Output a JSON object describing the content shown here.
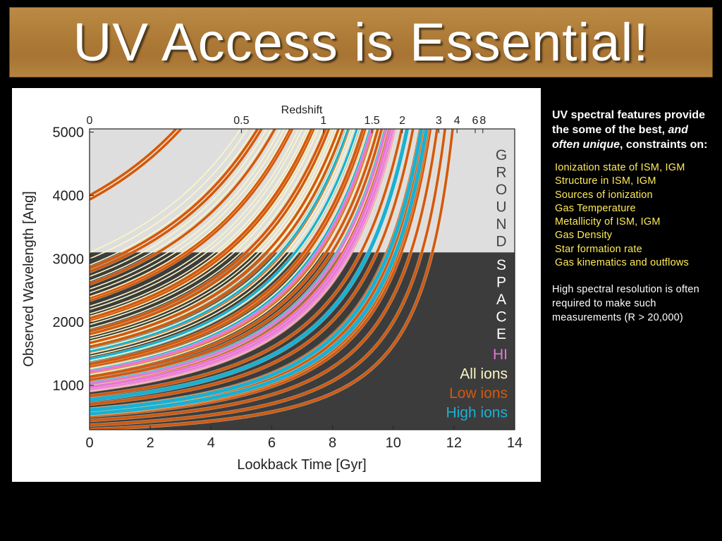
{
  "slide": {
    "title": "UV Access is Essential!",
    "intro": {
      "part1": "UV spectral features provide the some of the best, ",
      "emphasis": "and often unique",
      "part2": ", constraints on:"
    },
    "bullets": [
      "Ionization state of ISM, IGM",
      "Structure in ISM, IGM",
      "Sources of ionization",
      "Gas Temperature",
      "Metallicity of ISM, IGM",
      "Gas Density",
      "Star formation rate",
      "Gas kinematics and outflows"
    ],
    "note": "High spectral resolution is often required to make such measurements (R > 20,000)"
  },
  "colors": {
    "ground_band": "#dedede",
    "space_band": "#3c3c3c",
    "all_ions": "#fbf7c6",
    "low_ions": "#d2590e",
    "high_ions": "#18b1d3",
    "hi": "#e676d8"
  },
  "chart_data": {
    "type": "line",
    "title": "",
    "xlabel": "Lookback Time [Gyr]",
    "ylabel": "Observed Wavelength [Ang]",
    "top_axis_label": "Redshift",
    "xlim": [
      0,
      14
    ],
    "ylim": [
      300,
      5050
    ],
    "x_ticks": [
      0,
      2,
      4,
      6,
      8,
      10,
      12,
      14
    ],
    "y_ticks": [
      1000,
      2000,
      3000,
      4000,
      5000
    ],
    "redshift_ticks": [
      {
        "label": "0",
        "t": 0
      },
      {
        "label": "0.5",
        "t": 5.0
      },
      {
        "label": "1",
        "t": 7.7
      },
      {
        "label": "1.5",
        "t": 9.3
      },
      {
        "label": "2",
        "t": 10.3
      },
      {
        "label": "3",
        "t": 11.5
      },
      {
        "label": "4",
        "t": 12.1
      },
      {
        "label": "6",
        "t": 12.7
      },
      {
        "label": "8",
        "t": 12.95
      }
    ],
    "t_max": 13.7,
    "ground_space_boundary": 3100,
    "band_labels": {
      "ground": "GROUND",
      "space": "SPACE"
    },
    "legend": [
      {
        "name": "HI",
        "color": "#e676d8"
      },
      {
        "name": "All ions",
        "color": "#fbf7c6"
      },
      {
        "name": "Low ions",
        "color": "#d2590e"
      },
      {
        "name": "High ions",
        "color": "#18b1d3"
      }
    ],
    "series": [
      {
        "name": "Low ions",
        "rest_wavelengths": [
          304,
          372,
          447,
          515,
          537,
          584,
          625,
          703,
          834,
          916,
          988,
          1039,
          1084,
          1134,
          1190,
          1206,
          1253,
          1302,
          1334,
          1393,
          1526,
          1608,
          1671,
          1808,
          1855,
          2026,
          2062,
          2344,
          2382,
          2600,
          2796,
          2853,
          3934,
          4000
        ]
      },
      {
        "name": "High ions",
        "rest_wavelengths": [
          555,
          610,
          770,
          1032,
          1238,
          1403,
          1548
        ]
      },
      {
        "name": "HI",
        "rest_wavelengths": [
          920,
          926,
          930,
          937,
          950,
          973,
          1026,
          1216
        ]
      },
      {
        "name": "All ions",
        "rest_wavelengths": [
          1170,
          1260,
          1390,
          1460,
          1500,
          1560,
          1640,
          1700,
          1740,
          1780,
          1900,
          1960,
          2000,
          2090,
          2130,
          2200,
          2250,
          2400,
          2460,
          2520,
          2650,
          2720,
          2900,
          3000,
          3100
        ]
      }
    ]
  }
}
